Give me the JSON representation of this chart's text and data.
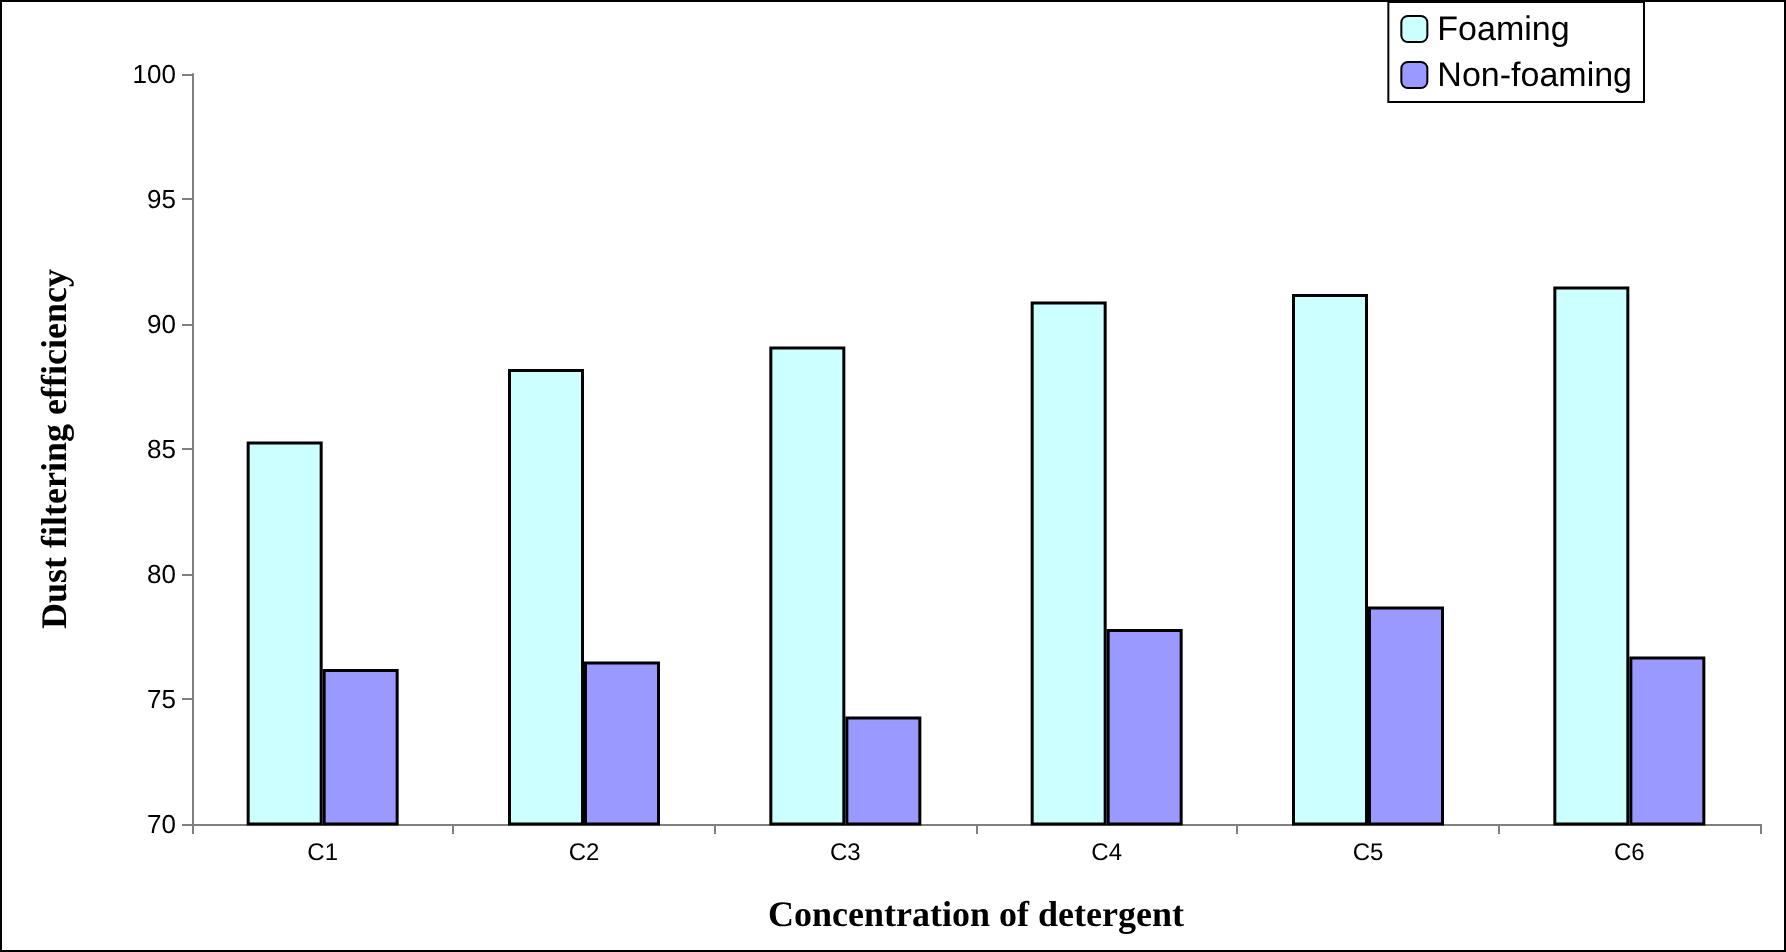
{
  "chart_data": {
    "type": "bar",
    "xlabel": "Concentration of detergent",
    "ylabel": "Dust filtering efficiency",
    "categories": [
      "C1",
      "C2",
      "C3",
      "C4",
      "C5",
      "C6"
    ],
    "series": [
      {
        "name": "Foaming",
        "color": "#ccffff",
        "values": [
          85.3,
          88.2,
          89.1,
          90.9,
          91.2,
          91.5
        ]
      },
      {
        "name": "Non-foaming",
        "color": "#9999ff",
        "values": [
          76.2,
          76.5,
          74.3,
          77.8,
          78.7,
          76.7
        ]
      }
    ],
    "ylim": [
      70,
      100
    ],
    "yticks": [
      70,
      75,
      80,
      85,
      90,
      95,
      100
    ],
    "grid": false,
    "legend": "top right"
  }
}
